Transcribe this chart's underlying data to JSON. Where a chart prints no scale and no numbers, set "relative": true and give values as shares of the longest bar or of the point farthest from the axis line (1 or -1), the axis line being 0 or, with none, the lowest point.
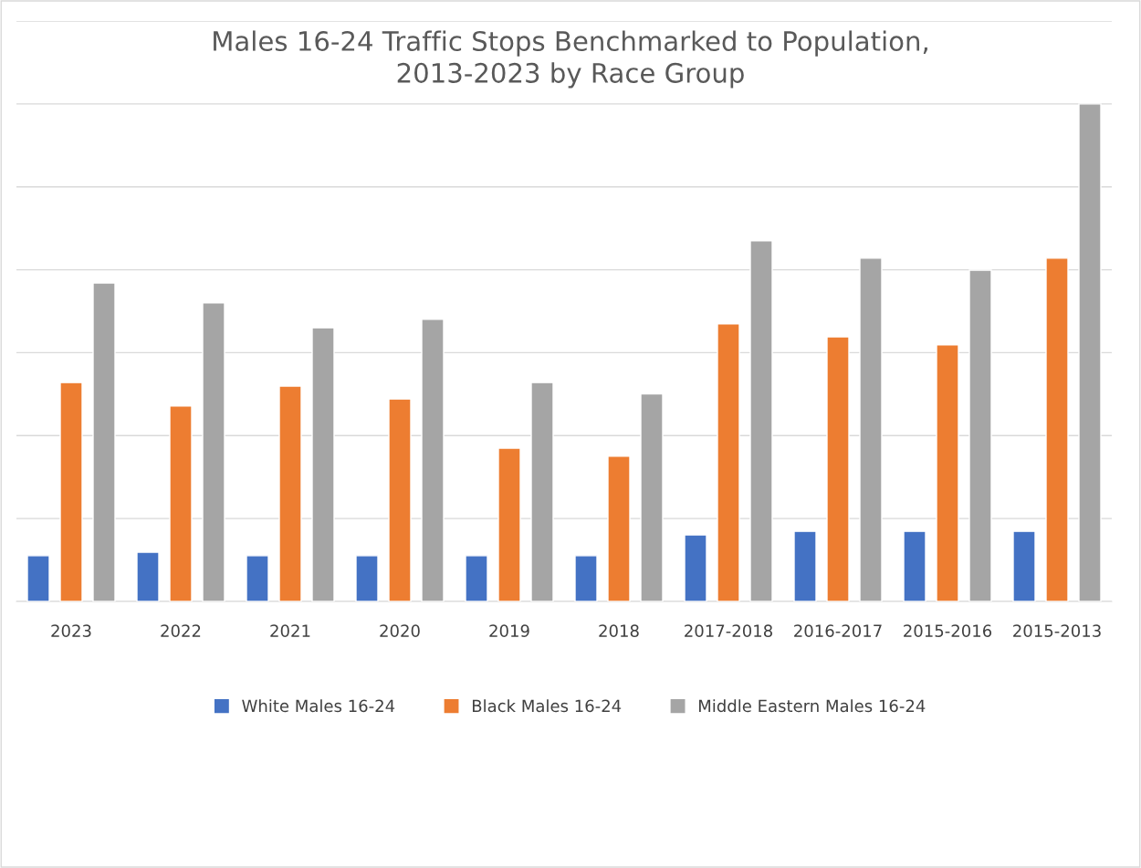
{
  "chart_data": {
    "type": "bar",
    "title": "Males 16-24 Traffic Stops Benchmarked to Population,\n2013-2023 by Race Group",
    "categories": [
      "2023",
      "2022",
      "2021",
      "2020",
      "2019",
      "2018",
      "2017-2018",
      "2016-2017",
      "2015-2016",
      "2015-2013"
    ],
    "relative": true,
    "grid": "y",
    "legend": "bottom",
    "series": [
      {
        "name": "White Males 16-24",
        "color": "#4472c4",
        "values": [
          0.092,
          0.099,
          0.092,
          0.092,
          0.092,
          0.092,
          0.134,
          0.141,
          0.141,
          0.141
        ]
      },
      {
        "name": "Black Males 16-24",
        "color": "#ed7d31",
        "values": [
          0.44,
          0.393,
          0.433,
          0.407,
          0.308,
          0.292,
          0.558,
          0.532,
          0.516,
          0.69
        ]
      },
      {
        "name": "Middle Eastern Males 16-24",
        "color": "#a5a5a5",
        "values": [
          0.64,
          0.6,
          0.55,
          0.567,
          0.44,
          0.417,
          0.725,
          0.69,
          0.666,
          1
        ]
      }
    ]
  }
}
